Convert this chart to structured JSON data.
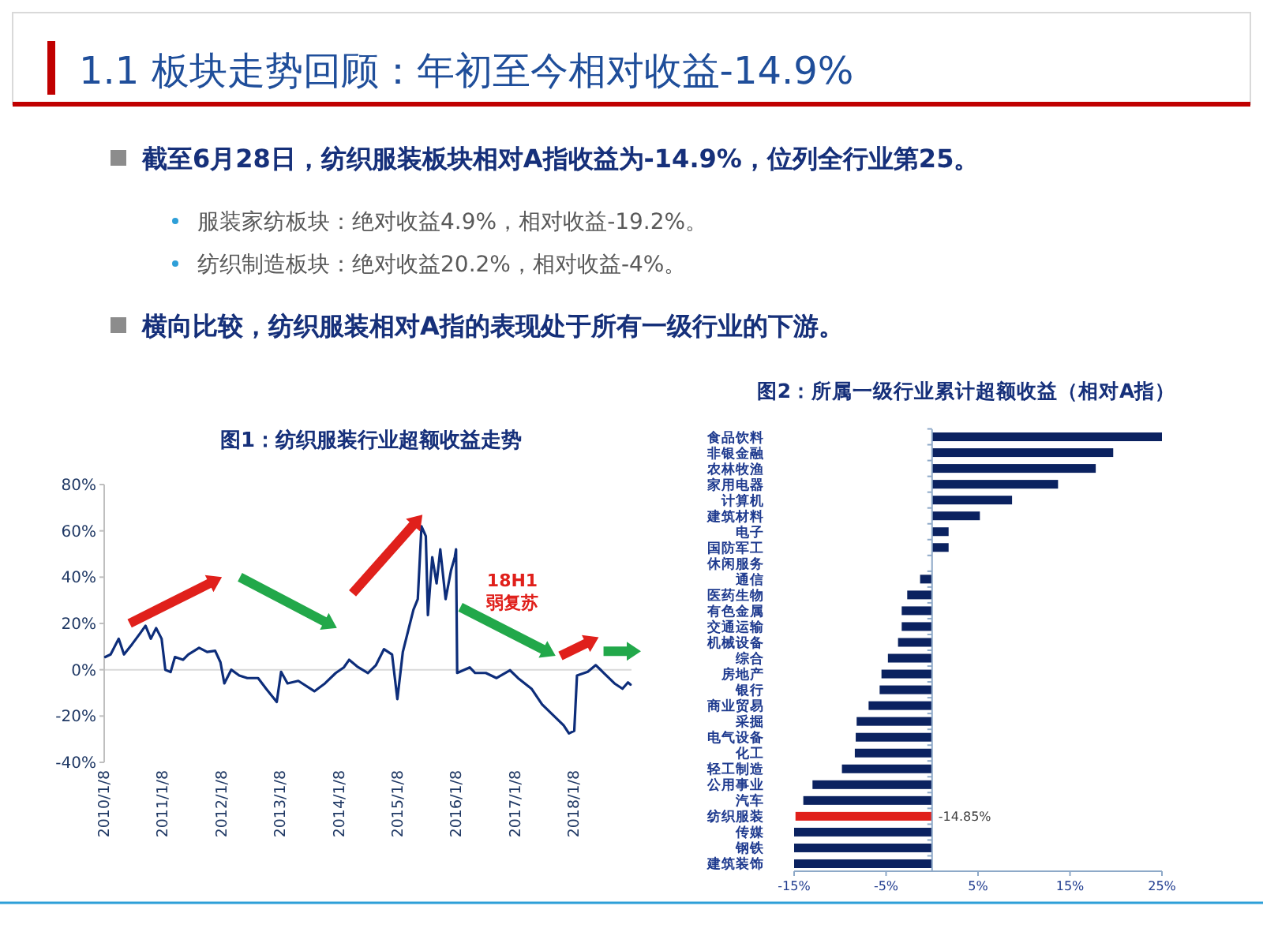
{
  "chart_data": [
    {
      "type": "other",
      "title": "1.1 板块走势回顾：年初至今相对收益-14.9%",
      "annotations": [
        "截至6月28日，纺织服装板块相对A指收益为-14.9%，位列全行业第25。",
        "服装家纺板块：绝对收益4.9%，相对收益-19.2%。",
        "纺织制造板块：绝对收益20.2%，相对收益-4%。",
        "横向比较，纺织服装相对A指的表现处于所有一级行业的下游。"
      ]
    },
    {
      "type": "line",
      "title": "图1：纺织服装行业超额收益走势",
      "annotations": [
        "18H1\n弱复苏"
      ],
      "x": [
        "2010-01-15",
        "2010-02-17",
        "2010-04-08",
        "2010-05-11",
        "2010-06-30",
        "2010-08-19",
        "2010-09-22",
        "2010-10-25",
        "2010-11-27",
        "2010-12-31",
        "2011-01-23",
        "2011-02-25",
        "2011-03-24",
        "2011-05-13",
        "2011-06-15",
        "2011-08-21",
        "2011-10-10",
        "2011-11-29",
        "2012-01-01",
        "2012-01-25",
        "2012-03-08",
        "2012-04-27",
        "2012-06-16",
        "2012-08-22",
        "2012-10-11",
        "2012-12-16",
        "2013-01-12",
        "2013-02-21",
        "2013-04-29",
        "2013-08-07",
        "2013-10-12",
        "2013-12-18",
        "2014-02-06",
        "2014-03-11",
        "2014-04-30",
        "2014-07-06",
        "2014-08-25",
        "2014-10-14",
        "2014-12-03",
        "2015-01-05",
        "2015-02-08",
        "2015-03-13",
        "2015-04-15",
        "2015-05-12",
        "2015-06-04",
        "2015-07-01",
        "2015-07-14",
        "2015-08-10",
        "2015-09-06",
        "2015-09-29",
        "2015-11-01",
        "2015-12-05",
        "2015-12-28",
        "2016-01-05",
        "2016-01-12",
        "2016-03-30",
        "2016-05-03",
        "2016-07-08",
        "2016-09-13",
        "2016-12-05",
        "2017-01-24",
        "2017-04-18",
        "2017-06-23",
        "2017-08-29",
        "2017-11-04",
        "2017-12-07",
        "2018-01-09",
        "2018-01-26",
        "2018-04-03",
        "2018-05-23",
        "2018-07-12",
        "2018-09-16",
        "2018-11-05",
        "2018-12-09",
        "2018-12-25"
      ],
      "series": [
        {
          "color": "#0d2d7a",
          "values": [
            5.5,
            6.6,
            13.4,
            6.6,
            11,
            15.7,
            19,
            13.4,
            18,
            13.4,
            0,
            -1,
            5.5,
            4.3,
            6.6,
            9.5,
            7.7,
            8.2,
            3.2,
            -5.9,
            0,
            -2.5,
            -3.6,
            -3.6,
            -8.2,
            -13.9,
            -0.9,
            -5.9,
            -4.8,
            -9.3,
            -5.9,
            -1.4,
            1,
            4.3,
            1.4,
            -1.4,
            2,
            8.9,
            6.6,
            -12.7,
            7.7,
            16.8,
            25.9,
            30.5,
            62,
            57.7,
            23.6,
            48.6,
            37.3,
            52,
            30.5,
            43,
            48.6,
            52,
            -1.4,
            1,
            -1.4,
            -1.4,
            -3.6,
            -0.2,
            -3.6,
            -8.2,
            -15,
            -19.5,
            -24,
            -27.5,
            -26.4,
            -2.5,
            -0.9,
            2,
            -1.4,
            -5.9,
            -8.2,
            -5.5,
            -6.4
          ]
        }
      ],
      "xlim": [
        "2010-01-08",
        "2018-12-31"
      ],
      "xticks": [
        {
          "value": "2010-01-08",
          "label": "2010/1/8"
        },
        {
          "value": "2011-01-08",
          "label": "2011/1/8"
        },
        {
          "value": "2012-01-08",
          "label": "2012/1/8"
        },
        {
          "value": "2013-01-08",
          "label": "2013/1/8"
        },
        {
          "value": "2014-01-08",
          "label": "2014/1/8"
        },
        {
          "value": "2015-01-08",
          "label": "2015/1/8"
        },
        {
          "value": "2016-01-08",
          "label": "2016/1/8"
        },
        {
          "value": "2017-01-08",
          "label": "2017/1/8"
        },
        {
          "value": "2018-01-08",
          "label": "2018/1/8"
        }
      ],
      "ylim": [
        -40,
        80
      ],
      "yticks": [
        {
          "value": -40,
          "label": "-40%"
        },
        {
          "value": -20,
          "label": "-20%"
        },
        {
          "value": 0,
          "label": "0%"
        },
        {
          "value": 20,
          "label": "20%"
        },
        {
          "value": 40,
          "label": "40%"
        },
        {
          "value": 60,
          "label": "60%"
        },
        {
          "value": 80,
          "label": "80%"
        }
      ],
      "ref_lines": [
        {
          "axis": "y",
          "value": 0,
          "color": "#d9d9d9"
        }
      ],
      "grid": false,
      "marker": "none",
      "line_style": "solid"
    },
    {
      "type": "bar",
      "orientation": "horizontal",
      "title": "图2：所属一级行业累计超额收益（相对A指）",
      "categories": [
        "食品饮料",
        "非银金融",
        "农林牧渔",
        "家用电器",
        "计算机",
        "建筑材料",
        "电子",
        "国防军工",
        "休闲服务",
        "通信",
        "医药生物",
        "有色金属",
        "交通运输",
        "机械设备",
        "综合",
        "房地产",
        "银行",
        "商业贸易",
        "采掘",
        "电气设备",
        "化工",
        "轻工制造",
        "公用事业",
        "汽车",
        "纺织服装",
        "传媒",
        "钢铁",
        "建筑装饰"
      ],
      "values": [
        25,
        19.7,
        17.8,
        13.7,
        8.7,
        5.2,
        1.8,
        1.8,
        null,
        -1.3,
        -2.7,
        -3.3,
        -3.3,
        -3.7,
        -4.8,
        -5.5,
        -5.7,
        -6.9,
        -8.2,
        -8.3,
        -8.4,
        -9.8,
        -13,
        -14,
        -14.85,
        -15,
        -15,
        -15
      ],
      "colors": [
        "#0b2260",
        "#0b2260",
        "#0b2260",
        "#0b2260",
        "#0b2260",
        "#0b2260",
        "#0b2260",
        "#0b2260",
        null,
        "#0b2260",
        "#0b2260",
        "#0b2260",
        "#0b2260",
        "#0b2260",
        "#0b2260",
        "#0b2260",
        "#0b2260",
        "#0b2260",
        "#0b2260",
        "#0b2260",
        "#0b2260",
        "#0b2260",
        "#0b2260",
        "#0b2260",
        "#e0201b",
        "#0b2260",
        "#0b2260",
        "#0b2260"
      ],
      "value_labels": [
        null,
        null,
        null,
        null,
        null,
        null,
        null,
        null,
        null,
        null,
        null,
        null,
        null,
        null,
        null,
        null,
        null,
        null,
        null,
        null,
        null,
        null,
        null,
        null,
        "-14.85%",
        null,
        null,
        null
      ],
      "xlim": [
        -15,
        25
      ],
      "xticks": [
        {
          "value": -15,
          "label": "-15%"
        },
        {
          "value": -5,
          "label": "-5%"
        },
        {
          "value": 5,
          "label": "5%"
        },
        {
          "value": 15,
          "label": "15%"
        },
        {
          "value": 25,
          "label": "25%"
        }
      ],
      "ref_lines": [
        {
          "axis": "x",
          "value": 0,
          "color": "#8ea9c8"
        }
      ],
      "grid": false
    }
  ]
}
